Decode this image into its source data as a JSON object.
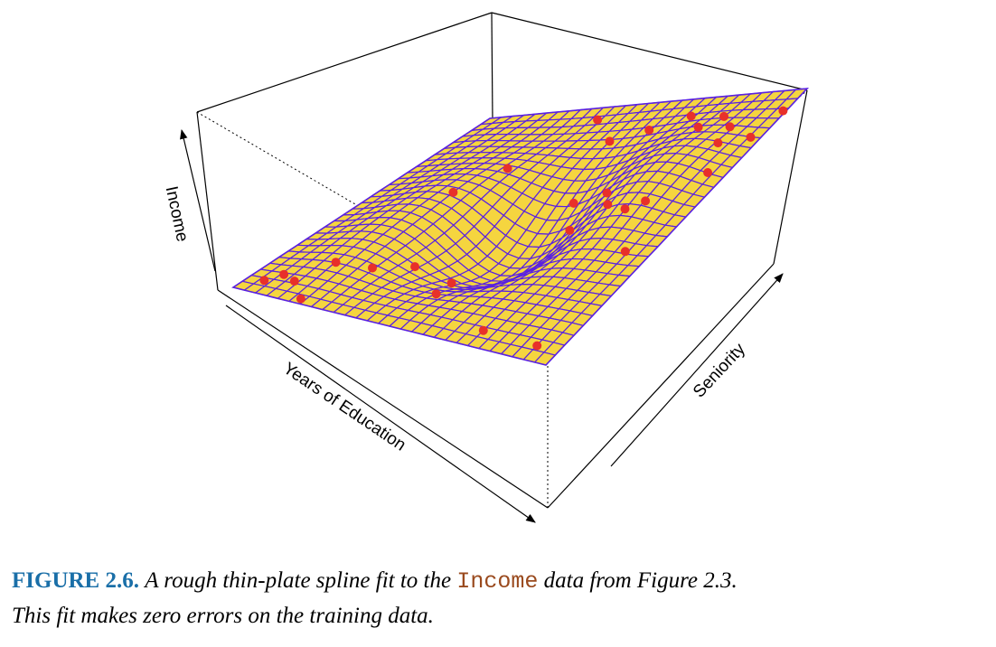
{
  "figure": {
    "number": "FIGURE 2.6.",
    "caption_part1": "A rough thin-plate spline fit to the",
    "caption_code": "Income",
    "caption_part2": "data from Figure 2.3.",
    "caption_line2": "This fit makes zero errors on the training data."
  },
  "chart_data": {
    "type": "surface3d",
    "xlabel": "Years of Education",
    "ylabel": "Seniority",
    "zlabel": "Income",
    "surface_color": "#f5d53f",
    "mesh_color": "#5a22e0",
    "point_color": "#e8302a",
    "box_color": "#000000"
  }
}
